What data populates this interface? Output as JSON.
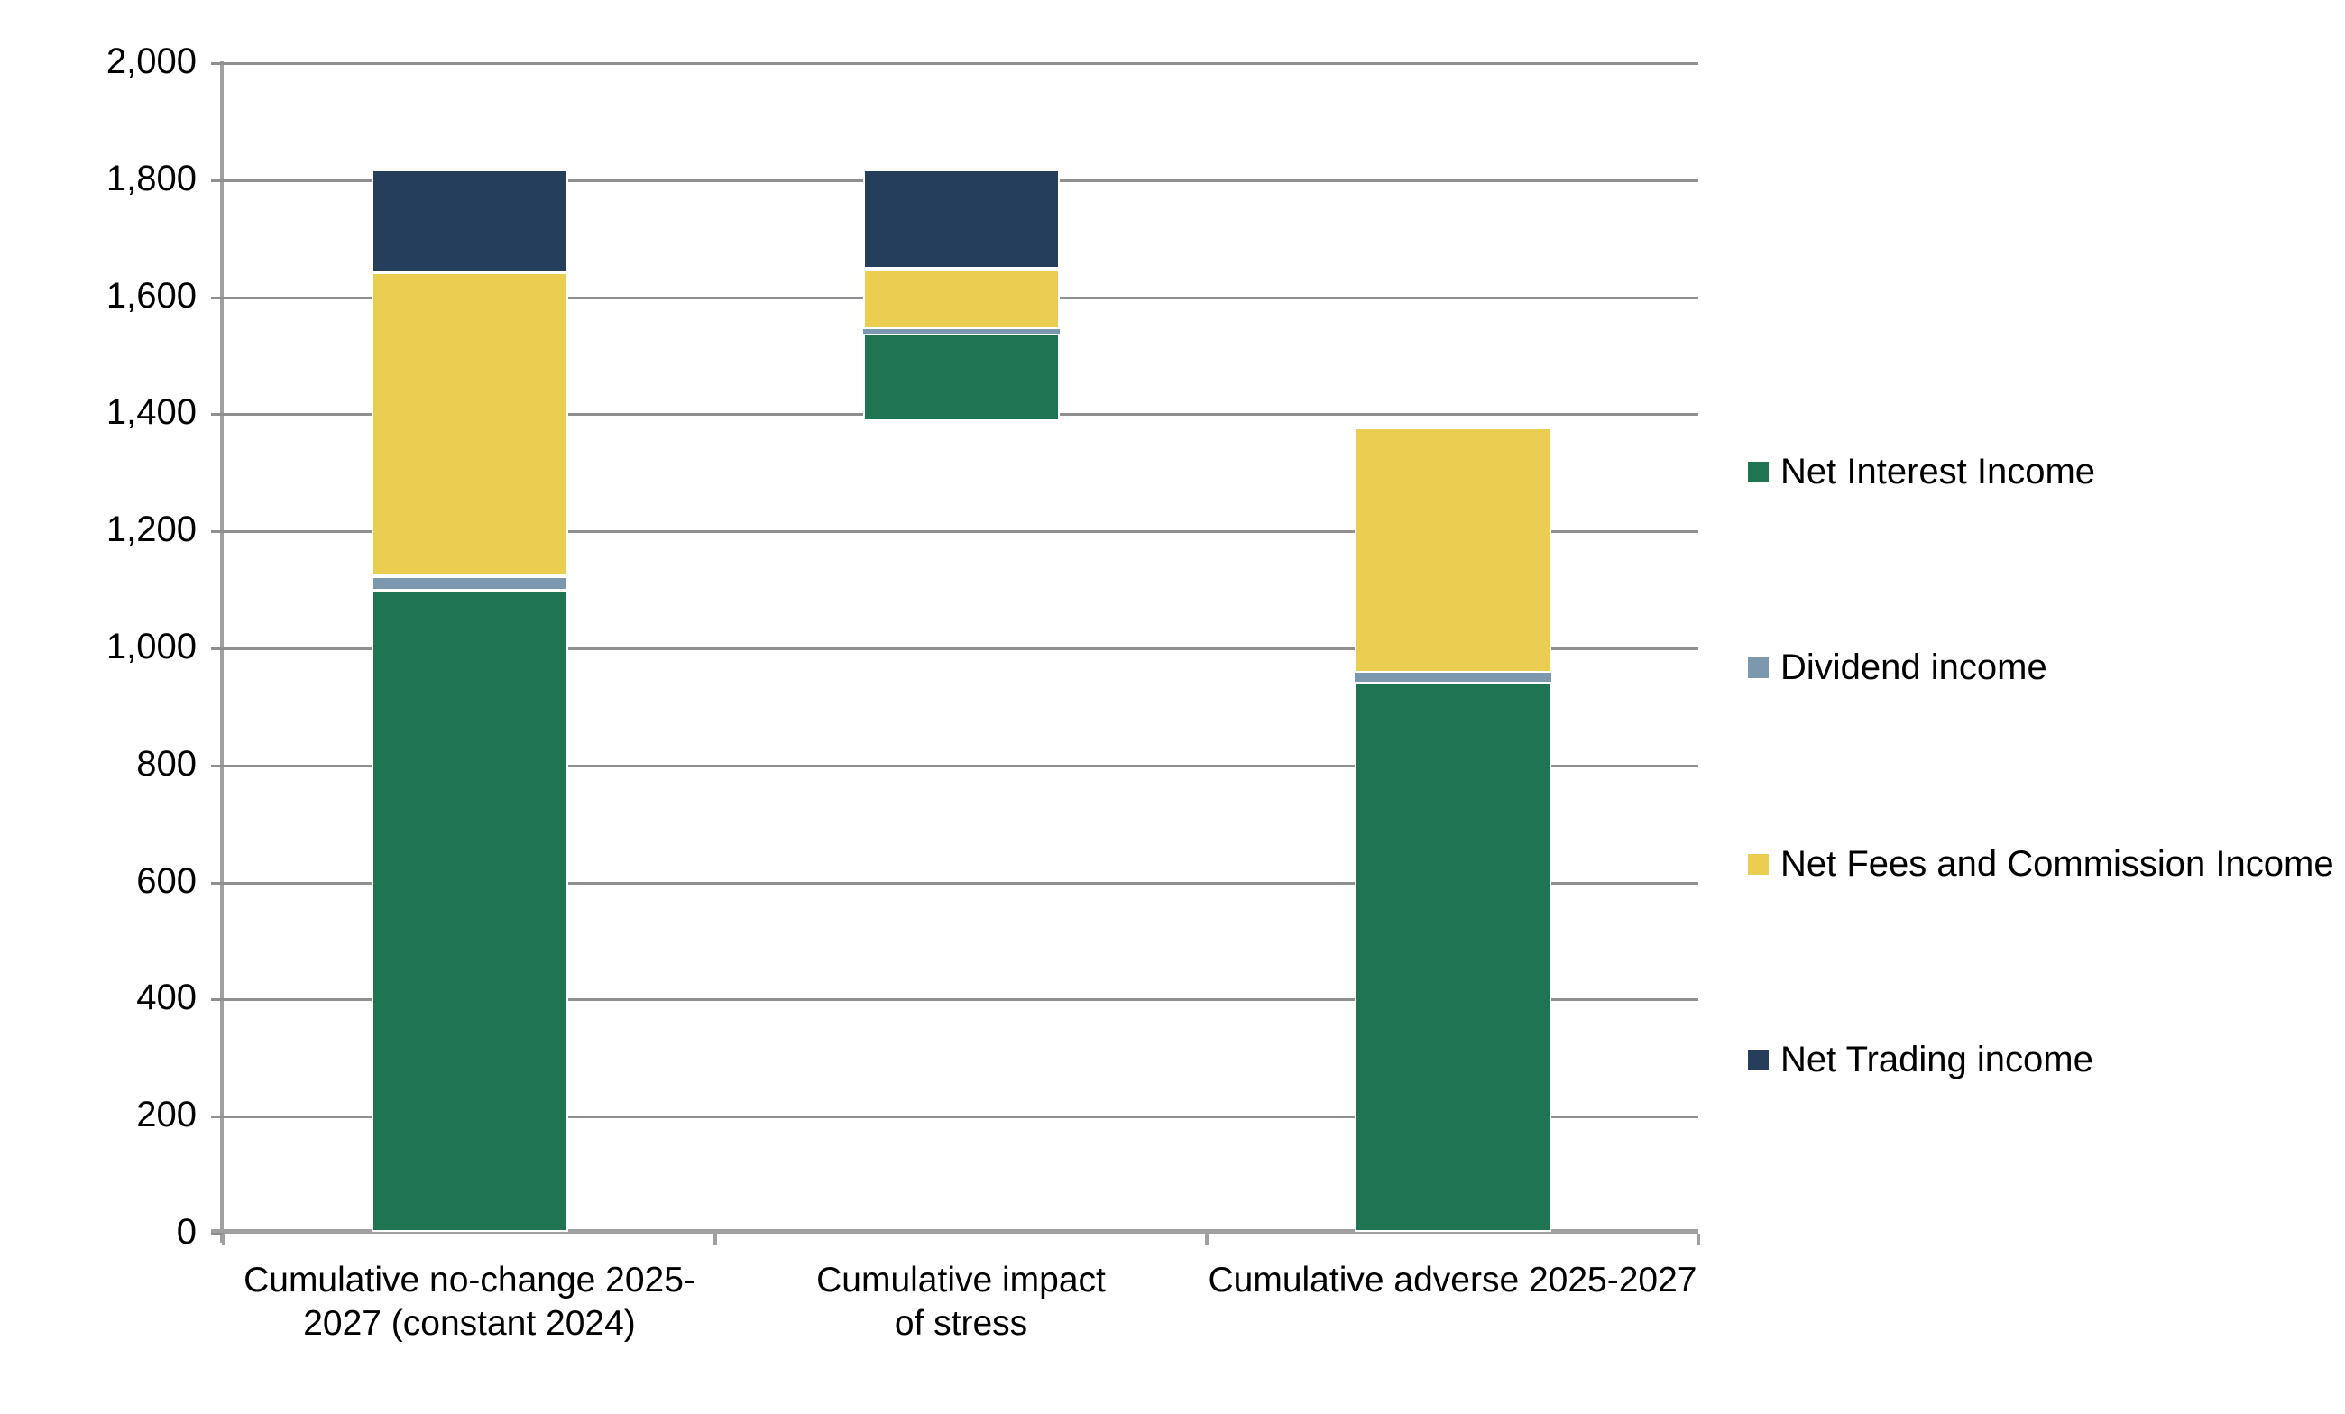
{
  "chart_data": {
    "type": "bar",
    "stacked": true,
    "title": "",
    "xlabel": "",
    "ylabel": "",
    "ylim": [
      0,
      2000
    ],
    "ytick_interval": 200,
    "ytick_labels": [
      "0",
      "200",
      "400",
      "600",
      "800",
      "1,000",
      "1,200",
      "1,400",
      "1,600",
      "1,800",
      "2,000"
    ],
    "grid": "horizontal",
    "legend_position": "right",
    "categories": [
      "Cumulative no-change 2025-\n2027 (constant 2024)",
      "Cumulative impact\nof stress",
      "Cumulative adverse 2025-2027"
    ],
    "bar_bases": [
      0,
      1385,
      0
    ],
    "bar_tops": [
      1815,
      1815,
      1375
    ],
    "series": [
      {
        "name": "Net Interest Income",
        "color": "#1f7551",
        "values": [
          1095,
          150,
          940
        ]
      },
      {
        "name": "Dividend income",
        "color": "#7b98ae",
        "values": [
          25,
          8,
          15
        ]
      },
      {
        "name": "Net Fees and Commission Income",
        "color": "#ebcd52",
        "values": [
          520,
          102,
          420
        ]
      },
      {
        "name": "Net Trading income",
        "color": "#243e5c",
        "values": [
          175,
          170,
          0
        ]
      }
    ],
    "colors": {
      "net_interest_income": "#1f7551",
      "dividend_income": "#7b98ae",
      "net_fees_and_commission_income": "#ebcd52",
      "net_trading_income": "#243e5c",
      "gridline": "#8f8f8f",
      "axis": "#a0a0a0",
      "text": "#000000",
      "background": "#ffffff"
    }
  }
}
